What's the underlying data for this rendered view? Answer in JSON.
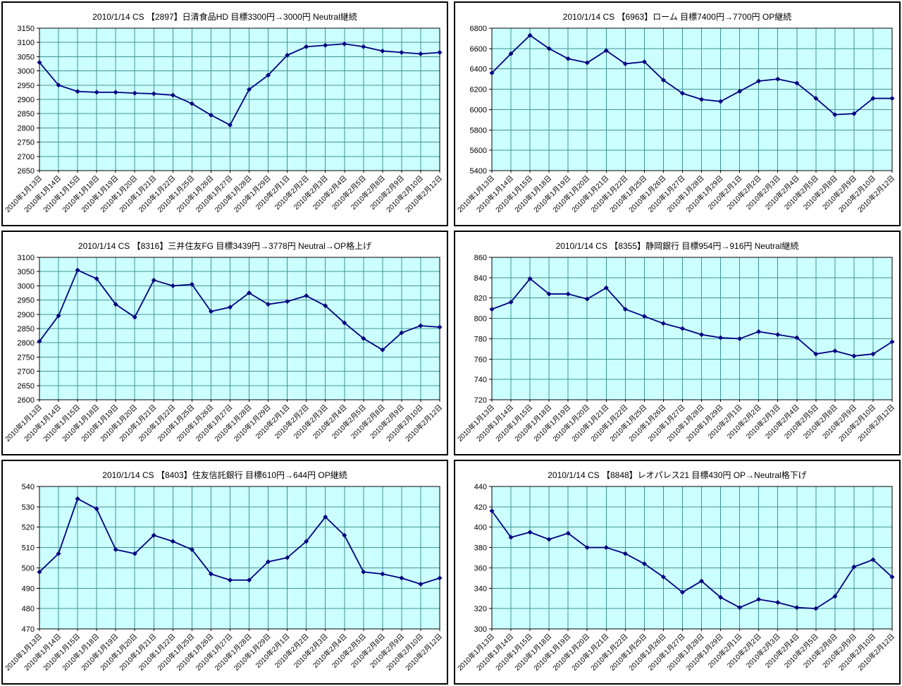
{
  "style": {
    "plot_bg": "#ccffff",
    "grid_color": "#3f9494",
    "axis_color": "#000000",
    "line_color": "#000080",
    "text_color": "#000000",
    "marker": "diamond"
  },
  "chart_data": [
    {
      "type": "line",
      "title": "2010/1/14 CS 【2897】日清食品HD 目標3300円→3000円 Neutral継続",
      "code": "2897",
      "name": "日清食品HD",
      "ylim": [
        2650,
        3150
      ],
      "ystep": 50,
      "legend": "none",
      "grid": true,
      "categories": [
        "2010年1月13日",
        "2010年1月14日",
        "2010年1月15日",
        "2010年1月18日",
        "2010年1月19日",
        "2010年1月20日",
        "2010年1月21日",
        "2010年1月22日",
        "2010年1月25日",
        "2010年1月26日",
        "2010年1月27日",
        "2010年1月28日",
        "2010年1月29日",
        "2010年2月1日",
        "2010年2月2日",
        "2010年2月3日",
        "2010年2月4日",
        "2010年2月5日",
        "2010年2月8日",
        "2010年2月9日",
        "2010年2月10日",
        "2010年2月12日"
      ],
      "values": [
        3030,
        2950,
        2928,
        2925,
        2925,
        2922,
        2920,
        2915,
        2885,
        2845,
        2810,
        2935,
        2985,
        3055,
        3085,
        3090,
        3095,
        3085,
        3070,
        3065,
        3060,
        3065
      ]
    },
    {
      "type": "line",
      "title": "2010/1/14 CS 【6963】ローム 目標7400円→7700円 OP継続",
      "code": "6963",
      "name": "ローム",
      "ylim": [
        5400,
        6800
      ],
      "ystep": 200,
      "legend": "none",
      "grid": true,
      "categories": [
        "2010年1月13日",
        "2010年1月14日",
        "2010年1月15日",
        "2010年1月18日",
        "2010年1月19日",
        "2010年1月20日",
        "2010年1月21日",
        "2010年1月22日",
        "2010年1月25日",
        "2010年1月26日",
        "2010年1月27日",
        "2010年1月28日",
        "2010年1月29日",
        "2010年2月1日",
        "2010年2月2日",
        "2010年2月3日",
        "2010年2月4日",
        "2010年2月5日",
        "2010年2月8日",
        "2010年2月9日",
        "2010年2月10日",
        "2010年2月12日"
      ],
      "values": [
        6360,
        6550,
        6730,
        6600,
        6500,
        6460,
        6580,
        6450,
        6470,
        6290,
        6160,
        6100,
        6080,
        6180,
        6280,
        6300,
        6260,
        6110,
        5950,
        5960,
        6110,
        6110
      ]
    },
    {
      "type": "line",
      "title": "2010/1/14 CS 【8316】三井住友FG 目標3439円→3778円 Neutral→OP格上げ",
      "code": "8316",
      "name": "三井住友FG",
      "ylim": [
        2600,
        3100
      ],
      "ystep": 50,
      "legend": "none",
      "grid": true,
      "categories": [
        "2010年1月13日",
        "2010年1月14日",
        "2010年1月15日",
        "2010年1月18日",
        "2010年1月19日",
        "2010年1月20日",
        "2010年1月21日",
        "2010年1月22日",
        "2010年1月25日",
        "2010年1月26日",
        "2010年1月27日",
        "2010年1月28日",
        "2010年1月29日",
        "2010年2月1日",
        "2010年2月2日",
        "2010年2月3日",
        "2010年2月4日",
        "2010年2月5日",
        "2010年2月8日",
        "2010年2月9日",
        "2010年2月10日",
        "2010年2月12日"
      ],
      "values": [
        2805,
        2895,
        3055,
        3025,
        2935,
        2890,
        3020,
        3000,
        3005,
        2910,
        2925,
        2975,
        2935,
        2945,
        2965,
        2930,
        2870,
        2815,
        2775,
        2835,
        2860,
        2855
      ]
    },
    {
      "type": "line",
      "title": "2010/1/14 CS 【8355】静岡銀行 目標954円→916円 Neutral継続",
      "code": "8355",
      "name": "静岡銀行",
      "ylim": [
        720,
        860
      ],
      "ystep": 20,
      "legend": "none",
      "grid": true,
      "categories": [
        "2010年1月13日",
        "2010年1月14日",
        "2010年1月15日",
        "2010年1月18日",
        "2010年1月19日",
        "2010年1月20日",
        "2010年1月21日",
        "2010年1月22日",
        "2010年1月25日",
        "2010年1月26日",
        "2010年1月27日",
        "2010年1月28日",
        "2010年1月29日",
        "2010年2月1日",
        "2010年2月2日",
        "2010年2月3日",
        "2010年2月4日",
        "2010年2月5日",
        "2010年2月8日",
        "2010年2月9日",
        "2010年2月10日",
        "2010年2月12日"
      ],
      "values": [
        809,
        816,
        839,
        824,
        824,
        819,
        830,
        809,
        802,
        795,
        790,
        784,
        781,
        780,
        787,
        784,
        781,
        765,
        768,
        763,
        765,
        777
      ]
    },
    {
      "type": "line",
      "title": "2010/1/14 CS 【8403】住友信託銀行 目標610円→644円 OP継続",
      "code": "8403",
      "name": "住友信託銀行",
      "ylim": [
        470,
        540
      ],
      "ystep": 10,
      "legend": "none",
      "grid": true,
      "categories": [
        "2010年1月13日",
        "2010年1月14日",
        "2010年1月15日",
        "2010年1月18日",
        "2010年1月19日",
        "2010年1月20日",
        "2010年1月21日",
        "2010年1月22日",
        "2010年1月25日",
        "2010年1月26日",
        "2010年1月27日",
        "2010年1月28日",
        "2010年1月29日",
        "2010年2月1日",
        "2010年2月2日",
        "2010年2月3日",
        "2010年2月4日",
        "2010年2月5日",
        "2010年2月8日",
        "2010年2月9日",
        "2010年2月10日",
        "2010年2月12日"
      ],
      "values": [
        498,
        507,
        534,
        529,
        509,
        507,
        516,
        513,
        509,
        497,
        494,
        494,
        503,
        505,
        513,
        525,
        516,
        498,
        497,
        495,
        492,
        495
      ]
    },
    {
      "type": "line",
      "title": "2010/1/14 CS 【8848】レオパレス21 目標430円 OP→Neutral格下げ",
      "code": "8848",
      "name": "レオパレス21",
      "ylim": [
        300,
        440
      ],
      "ystep": 20,
      "legend": "none",
      "grid": true,
      "categories": [
        "2010年1月13日",
        "2010年1月14日",
        "2010年1月15日",
        "2010年1月18日",
        "2010年1月19日",
        "2010年1月20日",
        "2010年1月21日",
        "2010年1月22日",
        "2010年1月25日",
        "2010年1月26日",
        "2010年1月27日",
        "2010年1月28日",
        "2010年1月29日",
        "2010年2月1日",
        "2010年2月2日",
        "2010年2月3日",
        "2010年2月4日",
        "2010年2月5日",
        "2010年2月8日",
        "2010年2月9日",
        "2010年2月10日",
        "2010年2月12日"
      ],
      "values": [
        416,
        390,
        395,
        388,
        394,
        380,
        380,
        374,
        364,
        351,
        336,
        347,
        331,
        321,
        329,
        326,
        321,
        320,
        332,
        361,
        368,
        351
      ]
    }
  ]
}
